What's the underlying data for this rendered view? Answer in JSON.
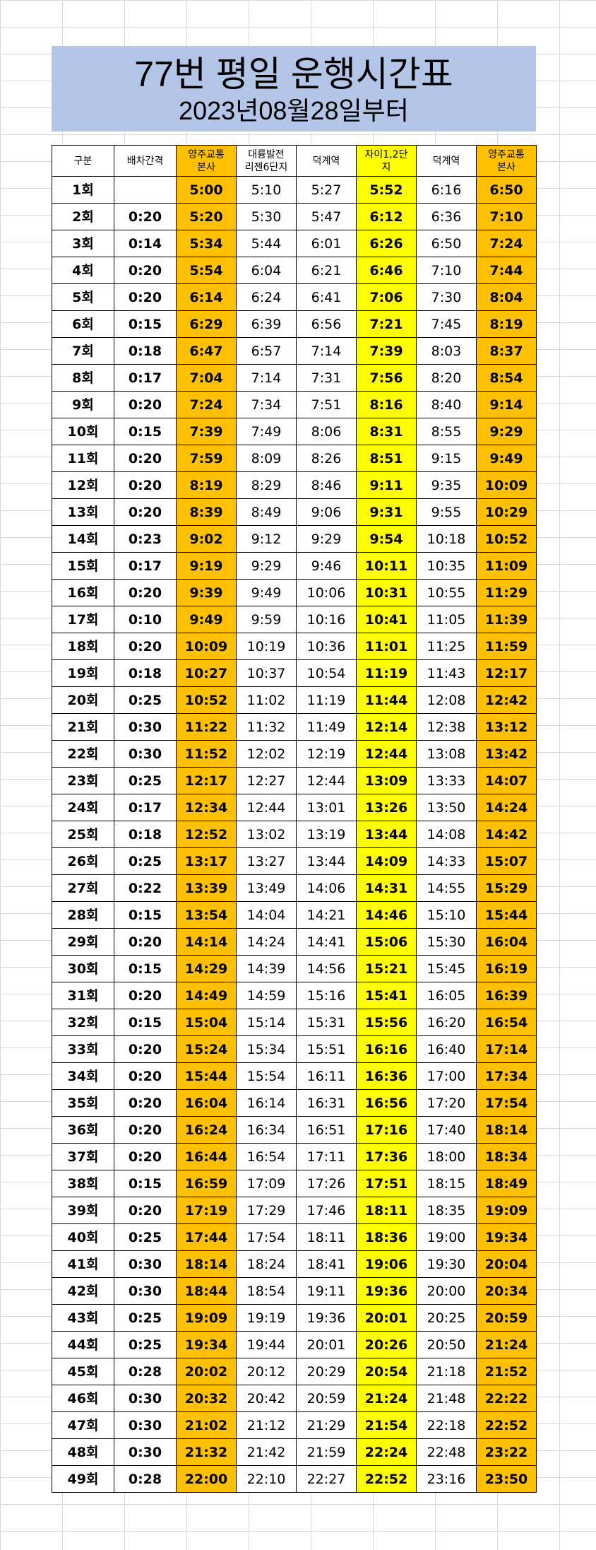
{
  "title": "77번 평일 운행시간표",
  "subtitle": "2023년08월28일부터",
  "colors": {
    "title_bg": "#b4c6e7",
    "orange": "#ffc000",
    "yellow": "#ffff00"
  },
  "headers": [
    "구분",
    "배차간격",
    "양주교통\n본사",
    "대륭발전\n리젠6단지",
    "덕계역",
    "자이1,2단\n지",
    "덕계역",
    "양주교통\n본사"
  ],
  "column_highlight": [
    "",
    "",
    "orange",
    "",
    "",
    "yellow",
    "",
    "orange"
  ],
  "rows": [
    [
      "1회",
      "",
      "5:00",
      "5:10",
      "5:27",
      "5:52",
      "6:16",
      "6:50"
    ],
    [
      "2회",
      "0:20",
      "5:20",
      "5:30",
      "5:47",
      "6:12",
      "6:36",
      "7:10"
    ],
    [
      "3회",
      "0:14",
      "5:34",
      "5:44",
      "6:01",
      "6:26",
      "6:50",
      "7:24"
    ],
    [
      "4회",
      "0:20",
      "5:54",
      "6:04",
      "6:21",
      "6:46",
      "7:10",
      "7:44"
    ],
    [
      "5회",
      "0:20",
      "6:14",
      "6:24",
      "6:41",
      "7:06",
      "7:30",
      "8:04"
    ],
    [
      "6회",
      "0:15",
      "6:29",
      "6:39",
      "6:56",
      "7:21",
      "7:45",
      "8:19"
    ],
    [
      "7회",
      "0:18",
      "6:47",
      "6:57",
      "7:14",
      "7:39",
      "8:03",
      "8:37"
    ],
    [
      "8회",
      "0:17",
      "7:04",
      "7:14",
      "7:31",
      "7:56",
      "8:20",
      "8:54"
    ],
    [
      "9회",
      "0:20",
      "7:24",
      "7:34",
      "7:51",
      "8:16",
      "8:40",
      "9:14"
    ],
    [
      "10회",
      "0:15",
      "7:39",
      "7:49",
      "8:06",
      "8:31",
      "8:55",
      "9:29"
    ],
    [
      "11회",
      "0:20",
      "7:59",
      "8:09",
      "8:26",
      "8:51",
      "9:15",
      "9:49"
    ],
    [
      "12회",
      "0:20",
      "8:19",
      "8:29",
      "8:46",
      "9:11",
      "9:35",
      "10:09"
    ],
    [
      "13회",
      "0:20",
      "8:39",
      "8:49",
      "9:06",
      "9:31",
      "9:55",
      "10:29"
    ],
    [
      "14회",
      "0:23",
      "9:02",
      "9:12",
      "9:29",
      "9:54",
      "10:18",
      "10:52"
    ],
    [
      "15회",
      "0:17",
      "9:19",
      "9:29",
      "9:46",
      "10:11",
      "10:35",
      "11:09"
    ],
    [
      "16회",
      "0:20",
      "9:39",
      "9:49",
      "10:06",
      "10:31",
      "10:55",
      "11:29"
    ],
    [
      "17회",
      "0:10",
      "9:49",
      "9:59",
      "10:16",
      "10:41",
      "11:05",
      "11:39"
    ],
    [
      "18회",
      "0:20",
      "10:09",
      "10:19",
      "10:36",
      "11:01",
      "11:25",
      "11:59"
    ],
    [
      "19회",
      "0:18",
      "10:27",
      "10:37",
      "10:54",
      "11:19",
      "11:43",
      "12:17"
    ],
    [
      "20회",
      "0:25",
      "10:52",
      "11:02",
      "11:19",
      "11:44",
      "12:08",
      "12:42"
    ],
    [
      "21회",
      "0:30",
      "11:22",
      "11:32",
      "11:49",
      "12:14",
      "12:38",
      "13:12"
    ],
    [
      "22회",
      "0:30",
      "11:52",
      "12:02",
      "12:19",
      "12:44",
      "13:08",
      "13:42"
    ],
    [
      "23회",
      "0:25",
      "12:17",
      "12:27",
      "12:44",
      "13:09",
      "13:33",
      "14:07"
    ],
    [
      "24회",
      "0:17",
      "12:34",
      "12:44",
      "13:01",
      "13:26",
      "13:50",
      "14:24"
    ],
    [
      "25회",
      "0:18",
      "12:52",
      "13:02",
      "13:19",
      "13:44",
      "14:08",
      "14:42"
    ],
    [
      "26회",
      "0:25",
      "13:17",
      "13:27",
      "13:44",
      "14:09",
      "14:33",
      "15:07"
    ],
    [
      "27회",
      "0:22",
      "13:39",
      "13:49",
      "14:06",
      "14:31",
      "14:55",
      "15:29"
    ],
    [
      "28회",
      "0:15",
      "13:54",
      "14:04",
      "14:21",
      "14:46",
      "15:10",
      "15:44"
    ],
    [
      "29회",
      "0:20",
      "14:14",
      "14:24",
      "14:41",
      "15:06",
      "15:30",
      "16:04"
    ],
    [
      "30회",
      "0:15",
      "14:29",
      "14:39",
      "14:56",
      "15:21",
      "15:45",
      "16:19"
    ],
    [
      "31회",
      "0:20",
      "14:49",
      "14:59",
      "15:16",
      "15:41",
      "16:05",
      "16:39"
    ],
    [
      "32회",
      "0:15",
      "15:04",
      "15:14",
      "15:31",
      "15:56",
      "16:20",
      "16:54"
    ],
    [
      "33회",
      "0:20",
      "15:24",
      "15:34",
      "15:51",
      "16:16",
      "16:40",
      "17:14"
    ],
    [
      "34회",
      "0:20",
      "15:44",
      "15:54",
      "16:11",
      "16:36",
      "17:00",
      "17:34"
    ],
    [
      "35회",
      "0:20",
      "16:04",
      "16:14",
      "16:31",
      "16:56",
      "17:20",
      "17:54"
    ],
    [
      "36회",
      "0:20",
      "16:24",
      "16:34",
      "16:51",
      "17:16",
      "17:40",
      "18:14"
    ],
    [
      "37회",
      "0:20",
      "16:44",
      "16:54",
      "17:11",
      "17:36",
      "18:00",
      "18:34"
    ],
    [
      "38회",
      "0:15",
      "16:59",
      "17:09",
      "17:26",
      "17:51",
      "18:15",
      "18:49"
    ],
    [
      "39회",
      "0:20",
      "17:19",
      "17:29",
      "17:46",
      "18:11",
      "18:35",
      "19:09"
    ],
    [
      "40회",
      "0:25",
      "17:44",
      "17:54",
      "18:11",
      "18:36",
      "19:00",
      "19:34"
    ],
    [
      "41회",
      "0:30",
      "18:14",
      "18:24",
      "18:41",
      "19:06",
      "19:30",
      "20:04"
    ],
    [
      "42회",
      "0:30",
      "18:44",
      "18:54",
      "19:11",
      "19:36",
      "20:00",
      "20:34"
    ],
    [
      "43회",
      "0:25",
      "19:09",
      "19:19",
      "19:36",
      "20:01",
      "20:25",
      "20:59"
    ],
    [
      "44회",
      "0:25",
      "19:34",
      "19:44",
      "20:01",
      "20:26",
      "20:50",
      "21:24"
    ],
    [
      "45회",
      "0:28",
      "20:02",
      "20:12",
      "20:29",
      "20:54",
      "21:18",
      "21:52"
    ],
    [
      "46회",
      "0:30",
      "20:32",
      "20:42",
      "20:59",
      "21:24",
      "21:48",
      "22:22"
    ],
    [
      "47회",
      "0:30",
      "21:02",
      "21:12",
      "21:29",
      "21:54",
      "22:18",
      "22:52"
    ],
    [
      "48회",
      "0:30",
      "21:32",
      "21:42",
      "21:59",
      "22:24",
      "22:48",
      "23:22"
    ],
    [
      "49회",
      "0:28",
      "22:00",
      "22:10",
      "22:27",
      "22:52",
      "23:16",
      "23:50"
    ]
  ]
}
